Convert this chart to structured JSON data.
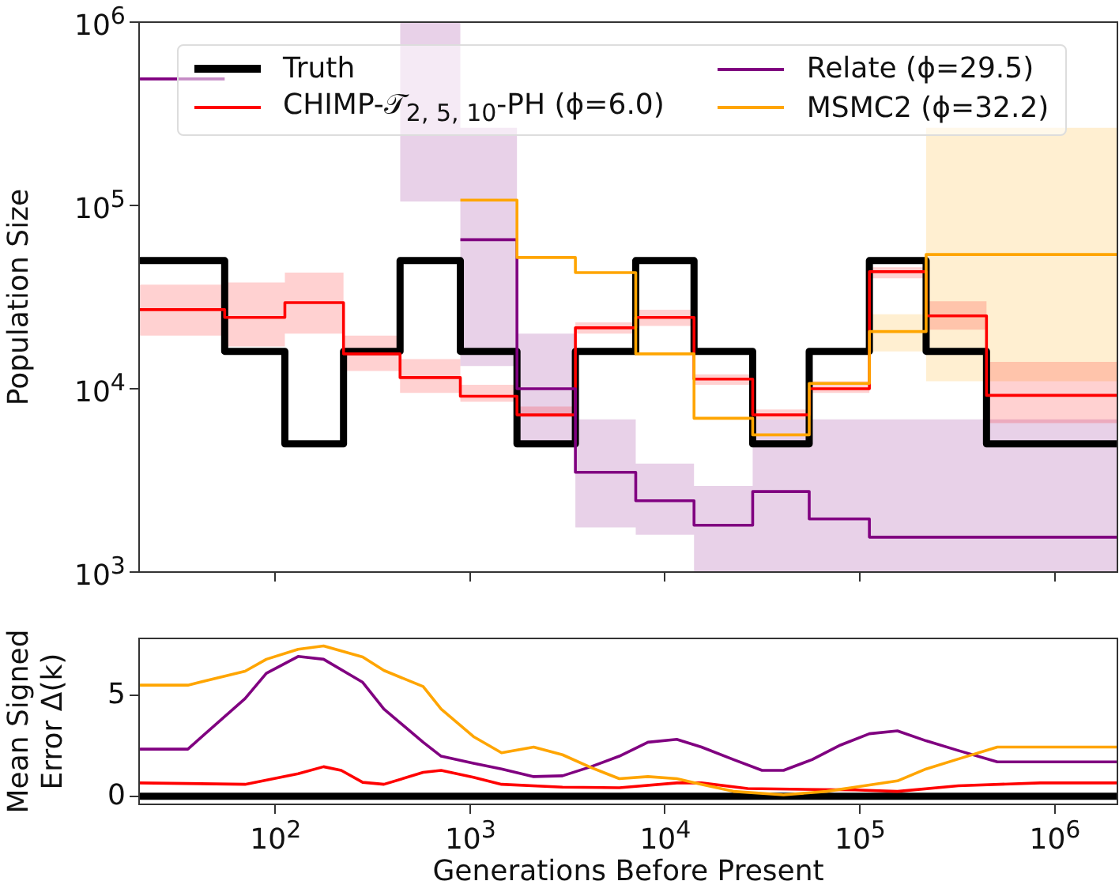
{
  "chart_data": [
    {
      "type": "step",
      "ylabel": "Population Size",
      "log": "xy",
      "legend": "top",
      "tick_labels": "y",
      "xlim": [
        20,
        2100000
      ],
      "ylim": [
        1000,
        1000000
      ],
      "xticks": [
        {
          "value": 100,
          "label": null
        },
        {
          "value": 1000,
          "label": null
        },
        {
          "value": 10000,
          "label": null
        },
        {
          "value": 100000,
          "label": null
        },
        {
          "value": 1000000,
          "label": null
        }
      ],
      "yticks": [
        {
          "value": 1000,
          "label": "10$^{3}$"
        },
        {
          "value": 10000,
          "label": "10$^{4}$"
        },
        {
          "value": 100000,
          "label": "10$^{5}$"
        },
        {
          "value": 1000000,
          "label": "10$^{6}$"
        }
      ],
      "x": [
        20,
        55,
        112,
        224,
        437,
        891,
        1740,
        3470,
        7080,
        14100,
        28200,
        55000,
        112000,
        219000,
        447000,
        2100000
      ],
      "series": [
        {
          "name": "Truth",
          "color": "#000000",
          "values": [
            50000,
            16000,
            5000,
            16000,
            50000,
            16000,
            5000,
            16000,
            50000,
            16000,
            5000,
            16000,
            50000,
            16000,
            5000,
            5000
          ]
        },
        {
          "name": "CHIMP-𝒯$_{2, 5, 10}$-PH (ϕ=6.0)",
          "color": "#ff0000",
          "values": [
            27000,
            24500,
            29500,
            15500,
            11500,
            9100,
            7200,
            21500,
            24500,
            11300,
            7200,
            10000,
            43500,
            25000,
            9200,
            9200
          ],
          "lower": [
            19500,
            17000,
            20000,
            12500,
            9500,
            8500,
            7000,
            20000,
            22000,
            10500,
            6800,
            9500,
            40000,
            21000,
            6500,
            6500
          ],
          "upper": [
            37000,
            38000,
            43000,
            19500,
            14500,
            10500,
            8000,
            23000,
            27000,
            12000,
            7700,
            11000,
            46000,
            30000,
            14000,
            14000
          ]
        },
        {
          "name": "Relate (ϕ=29.5)",
          "color": "#800080",
          "x": [
            20,
            55,
            437,
            891,
            1740,
            3470,
            7080,
            14100,
            28200,
            55000,
            112000,
            219000,
            447000,
            2100000
          ],
          "values": [
            490000,
            490000,
            null,
            65000,
            10000,
            3500,
            2450,
            1800,
            2750,
            1950,
            1550,
            1550,
            1550,
            1550
          ],
          "lower": [
            null,
            null,
            105000,
            13300,
            5200,
            1750,
            1600,
            1000,
            1000,
            1000,
            1000,
            1000,
            1000,
            1000
          ],
          "upper": [
            null,
            null,
            1000000,
            265000,
            20000,
            6800,
            3900,
            2950,
            6800,
            6800,
            6800,
            6800,
            6800,
            6800
          ]
        },
        {
          "name": "MSMC2 (ϕ=32.2)",
          "color": "#ffa500",
          "values": [
            null,
            null,
            null,
            null,
            null,
            107000,
            52000,
            43000,
            15500,
            6900,
            5600,
            10700,
            20500,
            54000,
            54000,
            54000
          ],
          "lower": [
            null,
            null,
            null,
            null,
            null,
            null,
            null,
            null,
            null,
            null,
            null,
            null,
            16000,
            11000,
            11000,
            11000
          ],
          "upper": [
            null,
            null,
            null,
            null,
            null,
            null,
            null,
            null,
            null,
            null,
            null,
            null,
            25500,
            265000,
            265000,
            265000
          ]
        }
      ]
    },
    {
      "type": "line",
      "xlabel": "Generations Before Present",
      "ylabel": "Mean Signed\nError Δ(k)",
      "log": "x",
      "legend": false,
      "xlim": [
        20,
        2100000
      ],
      "ylim": [
        -0.4,
        7.8
      ],
      "xticks": [
        {
          "value": 100,
          "label": "10$^{2}$"
        },
        {
          "value": 1000,
          "label": "10$^{3}$"
        },
        {
          "value": 10000,
          "label": "10$^{4}$"
        },
        {
          "value": 100000,
          "label": "10$^{5}$"
        },
        {
          "value": 1000000,
          "label": "10$^{6}$"
        }
      ],
      "yticks": [
        0,
        5
      ],
      "series": [
        {
          "color": "#000000",
          "x": [
            20,
            2100000
          ],
          "values": [
            0,
            0
          ]
        },
        {
          "color": "#ff0000",
          "x": [
            20,
            70,
            131,
            177,
            218,
            281,
            361,
            574,
            710,
            1040,
            1450,
            2980,
            5830,
            11500,
            15400,
            26600,
            94400,
            156000,
            320000,
            843000,
            2100000
          ],
          "values": [
            0.66,
            0.59,
            1.11,
            1.46,
            1.28,
            0.69,
            0.59,
            1.18,
            1.28,
            0.94,
            0.59,
            0.45,
            0.42,
            0.66,
            0.66,
            0.38,
            0.31,
            0.24,
            0.52,
            0.66,
            0.66
          ]
        },
        {
          "color": "#800080",
          "x": [
            20,
            35.6,
            70,
            90,
            131,
            177,
            281,
            361,
            574,
            710,
            1040,
            1450,
            2120,
            2980,
            4170,
            5830,
            8180,
            11500,
            15400,
            22500,
            31500,
            40600,
            56900,
            79600,
            112000,
            156000,
            219000,
            320000,
            508000,
            2100000
          ],
          "values": [
            2.33,
            2.33,
            4.83,
            6.08,
            6.91,
            6.77,
            5.63,
            4.31,
            2.67,
            1.98,
            1.63,
            1.35,
            0.97,
            1.01,
            1.46,
            1.98,
            2.67,
            2.81,
            2.43,
            1.81,
            1.28,
            1.28,
            1.81,
            2.53,
            3.09,
            3.23,
            2.74,
            2.26,
            1.7,
            1.7
          ]
        },
        {
          "color": "#ffa500",
          "x": [
            20,
            35.6,
            70,
            90,
            131,
            177,
            281,
            361,
            574,
            710,
            1040,
            1450,
            2120,
            2980,
            4170,
            5830,
            8180,
            11500,
            15400,
            22500,
            40600,
            67300,
            94400,
            156000,
            219000,
            320000,
            508000,
            2100000
          ],
          "values": [
            5.49,
            5.49,
            6.18,
            6.77,
            7.26,
            7.43,
            6.88,
            6.22,
            5.42,
            4.31,
            2.95,
            2.15,
            2.43,
            2.05,
            1.42,
            0.87,
            0.97,
            0.87,
            0.59,
            0.24,
            0.07,
            0.24,
            0.45,
            0.76,
            1.35,
            1.84,
            2.43,
            2.43
          ]
        }
      ]
    }
  ]
}
